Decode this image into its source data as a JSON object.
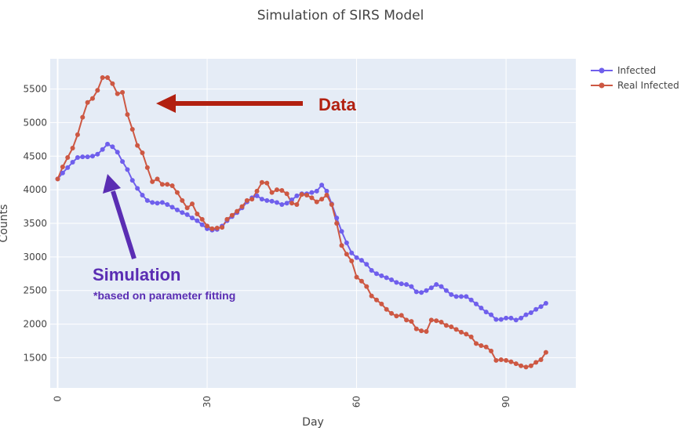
{
  "chart_data": {
    "type": "line",
    "title": "Simulation of SIRS Model",
    "xlabel": "Day",
    "ylabel": "Counts",
    "xlim": [
      -1.5,
      104
    ],
    "ylim": [
      1050,
      5950
    ],
    "x_ticks": [
      0,
      30,
      60,
      90
    ],
    "y_ticks": [
      1500,
      2000,
      2500,
      3000,
      3500,
      4000,
      4500,
      5000,
      5500
    ],
    "grid": true,
    "legend_position": "top-right",
    "series": [
      {
        "name": "Infected",
        "color": "#6f5fec",
        "x": [
          0,
          1,
          2,
          3,
          4,
          5,
          6,
          7,
          8,
          9,
          10,
          11,
          12,
          13,
          14,
          15,
          16,
          17,
          18,
          19,
          20,
          21,
          22,
          23,
          24,
          25,
          26,
          27,
          28,
          29,
          30,
          31,
          32,
          33,
          34,
          35,
          36,
          37,
          38,
          39,
          40,
          41,
          42,
          43,
          44,
          45,
          46,
          47,
          48,
          49,
          50,
          51,
          52,
          53,
          54,
          55,
          56,
          57,
          58,
          59,
          60,
          61,
          62,
          63,
          64,
          65,
          66,
          67,
          68,
          69,
          70,
          71,
          72,
          73,
          74,
          75,
          76,
          77,
          78,
          79,
          80,
          81,
          82,
          83,
          84,
          85,
          86,
          87,
          88,
          89,
          90,
          91,
          92,
          93,
          94,
          95,
          96,
          97,
          98
        ],
        "values": [
          4160,
          4250,
          4330,
          4410,
          4480,
          4490,
          4490,
          4500,
          4530,
          4600,
          4680,
          4640,
          4560,
          4420,
          4300,
          4140,
          4020,
          3920,
          3840,
          3810,
          3800,
          3810,
          3780,
          3740,
          3700,
          3660,
          3630,
          3580,
          3540,
          3480,
          3420,
          3400,
          3410,
          3460,
          3540,
          3600,
          3660,
          3730,
          3820,
          3880,
          3910,
          3860,
          3840,
          3830,
          3810,
          3780,
          3800,
          3850,
          3910,
          3940,
          3940,
          3960,
          3980,
          4070,
          3980,
          3790,
          3580,
          3380,
          3210,
          3060,
          2990,
          2950,
          2890,
          2800,
          2750,
          2720,
          2690,
          2660,
          2620,
          2600,
          2590,
          2560,
          2480,
          2470,
          2500,
          2540,
          2590,
          2560,
          2500,
          2440,
          2410,
          2410,
          2410,
          2360,
          2300,
          2240,
          2180,
          2140,
          2070,
          2070,
          2090,
          2090,
          2060,
          2090,
          2140,
          2170,
          2220,
          2260,
          2310
        ]
      },
      {
        "name": "Real Infected",
        "color": "#cd5843",
        "x": [
          0,
          1,
          2,
          3,
          4,
          5,
          6,
          7,
          8,
          9,
          10,
          11,
          12,
          13,
          14,
          15,
          16,
          17,
          18,
          19,
          20,
          21,
          22,
          23,
          24,
          25,
          26,
          27,
          28,
          29,
          30,
          31,
          32,
          33,
          34,
          35,
          36,
          37,
          38,
          39,
          40,
          41,
          42,
          43,
          44,
          45,
          46,
          47,
          48,
          49,
          50,
          51,
          52,
          53,
          54,
          55,
          56,
          57,
          58,
          59,
          60,
          61,
          62,
          63,
          64,
          65,
          66,
          67,
          68,
          69,
          70,
          71,
          72,
          73,
          74,
          75,
          76,
          77,
          78,
          79,
          80,
          81,
          82,
          83,
          84,
          85,
          86,
          87,
          88,
          89,
          90,
          91,
          92,
          93,
          94,
          95,
          96,
          97,
          98
        ],
        "values": [
          4160,
          4340,
          4480,
          4620,
          4820,
          5080,
          5300,
          5360,
          5480,
          5670,
          5670,
          5580,
          5430,
          5450,
          5120,
          4900,
          4660,
          4550,
          4330,
          4120,
          4160,
          4080,
          4080,
          4060,
          3960,
          3840,
          3730,
          3790,
          3640,
          3560,
          3460,
          3420,
          3430,
          3440,
          3560,
          3620,
          3680,
          3750,
          3840,
          3860,
          3980,
          4110,
          4100,
          3960,
          4000,
          3990,
          3940,
          3800,
          3780,
          3930,
          3920,
          3880,
          3820,
          3860,
          3920,
          3780,
          3500,
          3170,
          3040,
          2940,
          2700,
          2640,
          2560,
          2420,
          2360,
          2300,
          2220,
          2160,
          2120,
          2130,
          2060,
          2040,
          1930,
          1900,
          1890,
          2060,
          2050,
          2030,
          1980,
          1960,
          1920,
          1880,
          1850,
          1810,
          1710,
          1680,
          1660,
          1600,
          1460,
          1470,
          1460,
          1440,
          1410,
          1380,
          1360,
          1380,
          1430,
          1470,
          1580
        ]
      }
    ],
    "annotations": [
      {
        "text": "Data",
        "color": "#b22010"
      },
      {
        "text": "Simulation",
        "color": "#5a2db3"
      },
      {
        "text": "*based on parameter fitting",
        "color": "#5a2db3"
      }
    ]
  }
}
